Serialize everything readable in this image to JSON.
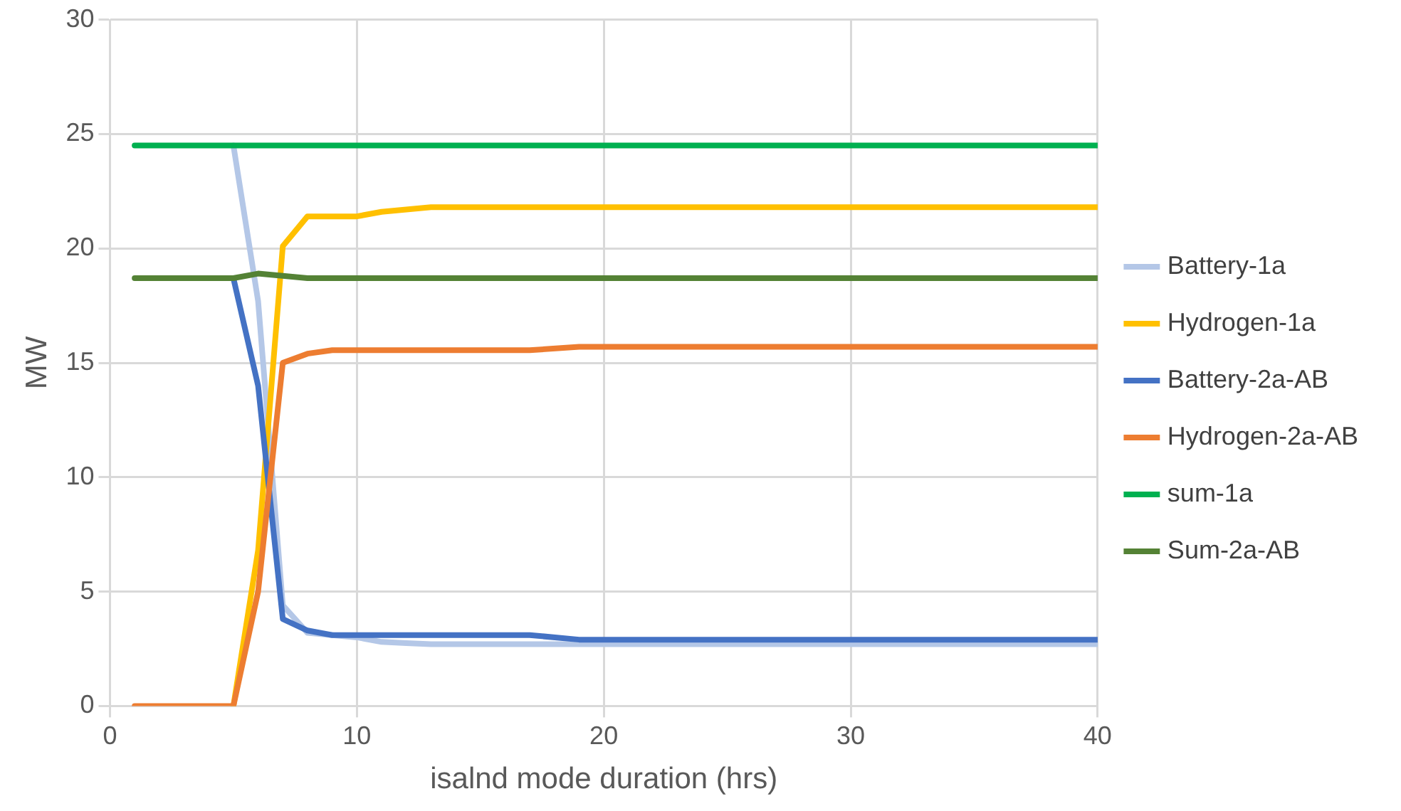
{
  "chart_data": {
    "type": "line",
    "xlabel": "isalnd mode duration (hrs)",
    "ylabel": "MW",
    "x": [
      1,
      5,
      6,
      7,
      8,
      9,
      10,
      11,
      12,
      13,
      17,
      19,
      40
    ],
    "series": [
      {
        "name": "Battery-1a",
        "color": "#b4c7e7",
        "values": [
          null,
          24.5,
          17.7,
          4.4,
          3.2,
          3.1,
          3.0,
          2.8,
          2.75,
          2.7,
          2.7,
          2.7,
          2.7
        ]
      },
      {
        "name": "Hydrogen-1a",
        "color": "#ffc000",
        "values": [
          null,
          0,
          6.8,
          20.1,
          21.4,
          21.4,
          21.4,
          21.6,
          21.7,
          21.8,
          21.8,
          21.8,
          21.8
        ]
      },
      {
        "name": "Battery-2a-AB",
        "color": "#4472c4",
        "values": [
          null,
          18.7,
          14.0,
          3.8,
          3.3,
          3.1,
          3.1,
          3.1,
          3.1,
          3.1,
          3.1,
          2.9,
          2.9
        ]
      },
      {
        "name": "Hydrogen-2a-AB",
        "color": "#ed7d31",
        "values": [
          0,
          0,
          5.0,
          15.0,
          15.4,
          15.55,
          15.55,
          15.55,
          15.55,
          15.55,
          15.55,
          15.7,
          15.7
        ]
      },
      {
        "name": "sum-1a",
        "color": "#00b050",
        "values": [
          24.5,
          24.5,
          24.5,
          24.5,
          24.5,
          24.5,
          24.5,
          24.5,
          24.5,
          24.5,
          24.5,
          24.5,
          24.5
        ]
      },
      {
        "name": "Sum-2a-AB",
        "color": "#548235",
        "values": [
          18.7,
          18.7,
          18.9,
          18.8,
          18.7,
          18.7,
          18.7,
          18.7,
          18.7,
          18.7,
          18.7,
          18.7,
          18.7
        ]
      }
    ],
    "xlim": [
      0,
      40
    ],
    "xticks": [
      0,
      10,
      20,
      30,
      40
    ],
    "ylim": [
      0,
      30
    ],
    "yticks": [
      0,
      5,
      10,
      15,
      20,
      25,
      30
    ],
    "grid": true,
    "legend": "right",
    "marker": "none",
    "line_style": "solid"
  }
}
